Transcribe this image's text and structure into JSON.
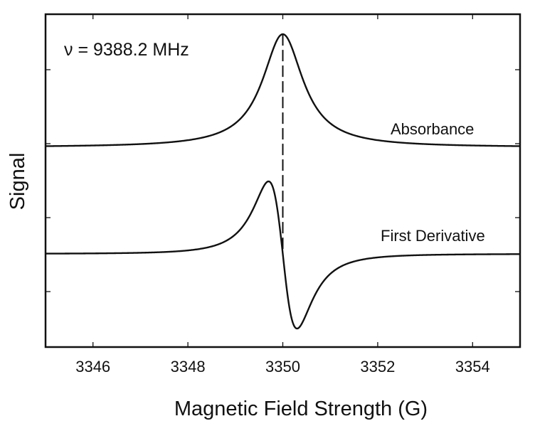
{
  "chart_data": {
    "type": "line",
    "title": "",
    "xlabel": "Magnetic Field Strength (G)",
    "ylabel": "Signal",
    "xlim": [
      3345,
      3355
    ],
    "ylim": [
      0,
      4.5
    ],
    "xticks": [
      3346,
      3348,
      3350,
      3352,
      3354
    ],
    "xtick_labels": [
      "3346",
      "3348",
      "3350",
      "3352",
      "3354"
    ],
    "yticks": [
      0.75,
      1.75,
      2.75,
      3.75
    ],
    "ytick_labels": [],
    "grid": false,
    "annotations": [
      {
        "text": "ν = 9388.2 MHz",
        "position": "top-left"
      },
      {
        "text": "Absorbance",
        "label_for": "absorbance"
      },
      {
        "text": "First Derivative",
        "label_for": "first-derivative"
      }
    ],
    "resonance_field": 3350.0,
    "marker_line": {
      "x": 3350.0,
      "style": "dashed",
      "from_y": 1.26,
      "to_y": 4.23
    },
    "series": [
      {
        "name": "Absorbance",
        "model": "lorentzian",
        "center": 3350.0,
        "half_width": 0.52,
        "baseline": 2.7,
        "amplitude": 1.53,
        "x": [
          3345,
          3346,
          3347,
          3348,
          3349,
          3349.5,
          3350,
          3350.5,
          3351,
          3352,
          3353,
          3354,
          3355
        ],
        "y": [
          2.72,
          2.73,
          2.74,
          2.8,
          2.99,
          3.45,
          4.23,
          3.45,
          2.99,
          2.8,
          2.74,
          2.73,
          2.72
        ]
      },
      {
        "name": "First Derivative",
        "model": "lorentzian-derivative",
        "center": 3350.0,
        "half_width": 0.52,
        "baseline": 1.26,
        "amplitude": 1.0,
        "x": [
          3345,
          3346,
          3347,
          3348,
          3349,
          3349.7,
          3350,
          3350.3,
          3351,
          3352,
          3353,
          3354,
          3355
        ],
        "y": [
          1.28,
          1.3,
          1.33,
          1.4,
          1.62,
          2.24,
          1.26,
          0.25,
          0.9,
          1.12,
          1.19,
          1.22,
          1.24
        ]
      }
    ]
  }
}
